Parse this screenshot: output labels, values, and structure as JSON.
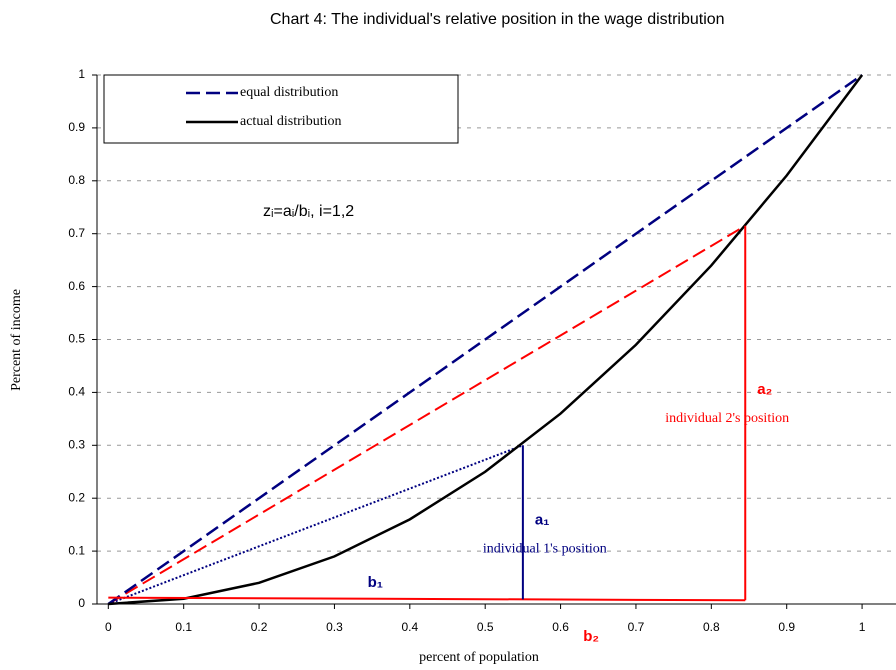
{
  "chart_data": {
    "type": "line",
    "title": "Chart 4: The individual's relative position in the wage distribution",
    "x_label": "percent of population",
    "y_label": "Percent of income",
    "xlim": [
      -0.015,
      1.045
    ],
    "ylim": [
      0,
      1
    ],
    "xticks": [
      0,
      0.1,
      0.2,
      0.3,
      0.4,
      0.5,
      0.6,
      0.7,
      0.8,
      0.9,
      1
    ],
    "yticks": [
      0,
      0.1,
      0.2,
      0.3,
      0.4,
      0.5,
      0.6,
      0.7,
      0.8,
      0.9,
      1
    ],
    "grid": true,
    "legend": "upper left",
    "series": [
      {
        "name": "equal distribution",
        "color": "#000080",
        "style": "dashed",
        "x": [
          0,
          1
        ],
        "values": [
          0,
          1
        ]
      },
      {
        "name": "actual distribution",
        "color": "#000000",
        "style": "solid",
        "x": [
          0,
          0.1,
          0.2,
          0.3,
          0.4,
          0.5,
          0.6,
          0.7,
          0.8,
          0.9,
          1
        ],
        "values": [
          0,
          0.01,
          0.04,
          0.09,
          0.16,
          0.25,
          0.36,
          0.49,
          0.64,
          0.81,
          1
        ]
      }
    ],
    "formula": "zᵢ=aᵢ/bᵢ, i=1,2",
    "baseline_color": "#ff0000",
    "baseline_y": [
      0.012,
      0.007
    ],
    "individuals": [
      {
        "x": 0.55,
        "y": 0.3,
        "color": "#000080",
        "chord_style": "dotted",
        "a_label": "a₁",
        "b_label": "b₁",
        "position_label": "individual 1's position"
      },
      {
        "x": 0.845,
        "y": 0.715,
        "color": "#ff0000",
        "chord_style": "dashed",
        "a_label": "a₂",
        "b_label": "b₂",
        "position_label": "individual 2's position"
      }
    ]
  }
}
